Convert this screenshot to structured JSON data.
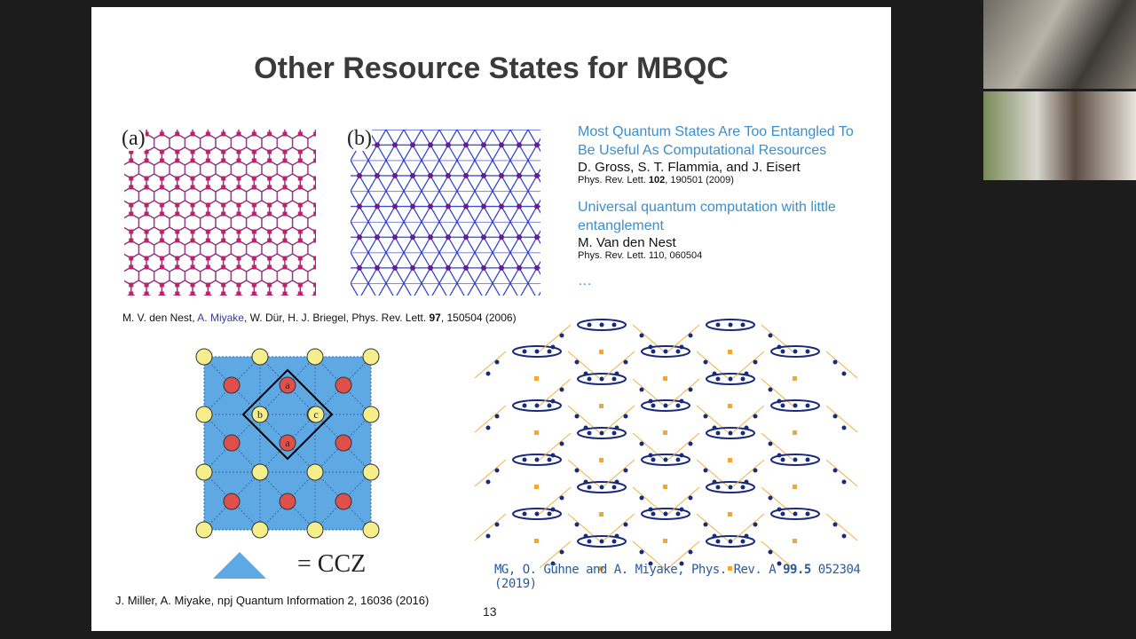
{
  "slide": {
    "title": "Other Resource States for MBQC",
    "figure_a_label": "(a)",
    "figure_b_label": "(b)",
    "citation_top": {
      "authors_1": "M. V. den Nest, ",
      "authors_2": "A. Miyake",
      "authors_3": ", W. Dür, H. J. Briegel,  Phys. Rev. Lett. ",
      "volume": "97",
      "rest": ", 150504 (2006)"
    },
    "references": [
      {
        "title": "Most Quantum States Are Too Entangled To Be Useful As Computational Resources",
        "authors": "D. Gross, S. T. Flammia, and J. Eisert",
        "journal": "Phys. Rev. Lett. ",
        "volume": "102",
        "rest": ", 190501 (2009)"
      },
      {
        "title": "Universal quantum computation with little entanglement",
        "authors": "M. Van den Nest",
        "journal": "Phys. Rev. Lett. 110, 060504"
      }
    ],
    "ellipsis": "…",
    "node_labels": [
      "a",
      "b",
      "c",
      "a"
    ],
    "ccz_label": "= CCZ",
    "citation_bottom_left": "J. Miller, A. Miyake,  npj Quantum Information 2, 16036 (2016)",
    "citation_bottom_right": {
      "before": "MG, O. Gühne and A. Miyake, Phys. Rev. A ",
      "volume": "99.5",
      "after": " 052304  (2019)"
    },
    "page_number": "13"
  }
}
